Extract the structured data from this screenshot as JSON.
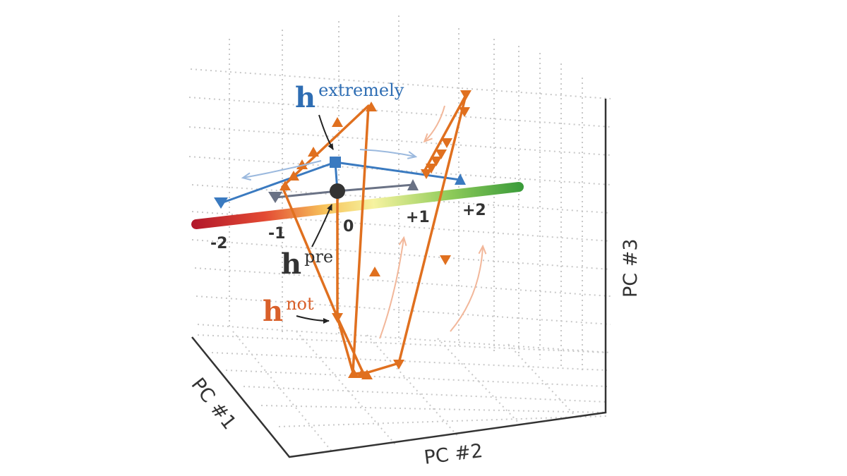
{
  "axes": {
    "x_label": "PC #1",
    "y_label": "PC #2",
    "z_label": "PC #3"
  },
  "scale": {
    "ticks": [
      "-2",
      "-1",
      "0",
      "+1",
      "+2"
    ],
    "colors": [
      "#b2182b",
      "#e34a33",
      "#f7c25a",
      "#f6f3a0",
      "#b8dc6a",
      "#3a9b3a"
    ]
  },
  "labels": {
    "extremely": {
      "base": "h",
      "sup": "extremely",
      "color": "#2e6db3"
    },
    "pre": {
      "base": "h",
      "sup": "pre",
      "color": "#333333"
    },
    "not": {
      "base": "h",
      "sup": "not",
      "color": "#d9602a"
    }
  },
  "series_colors": {
    "extremely": "#3a7ac0",
    "pre": "#6a7285",
    "not": "#e0701f"
  }
}
